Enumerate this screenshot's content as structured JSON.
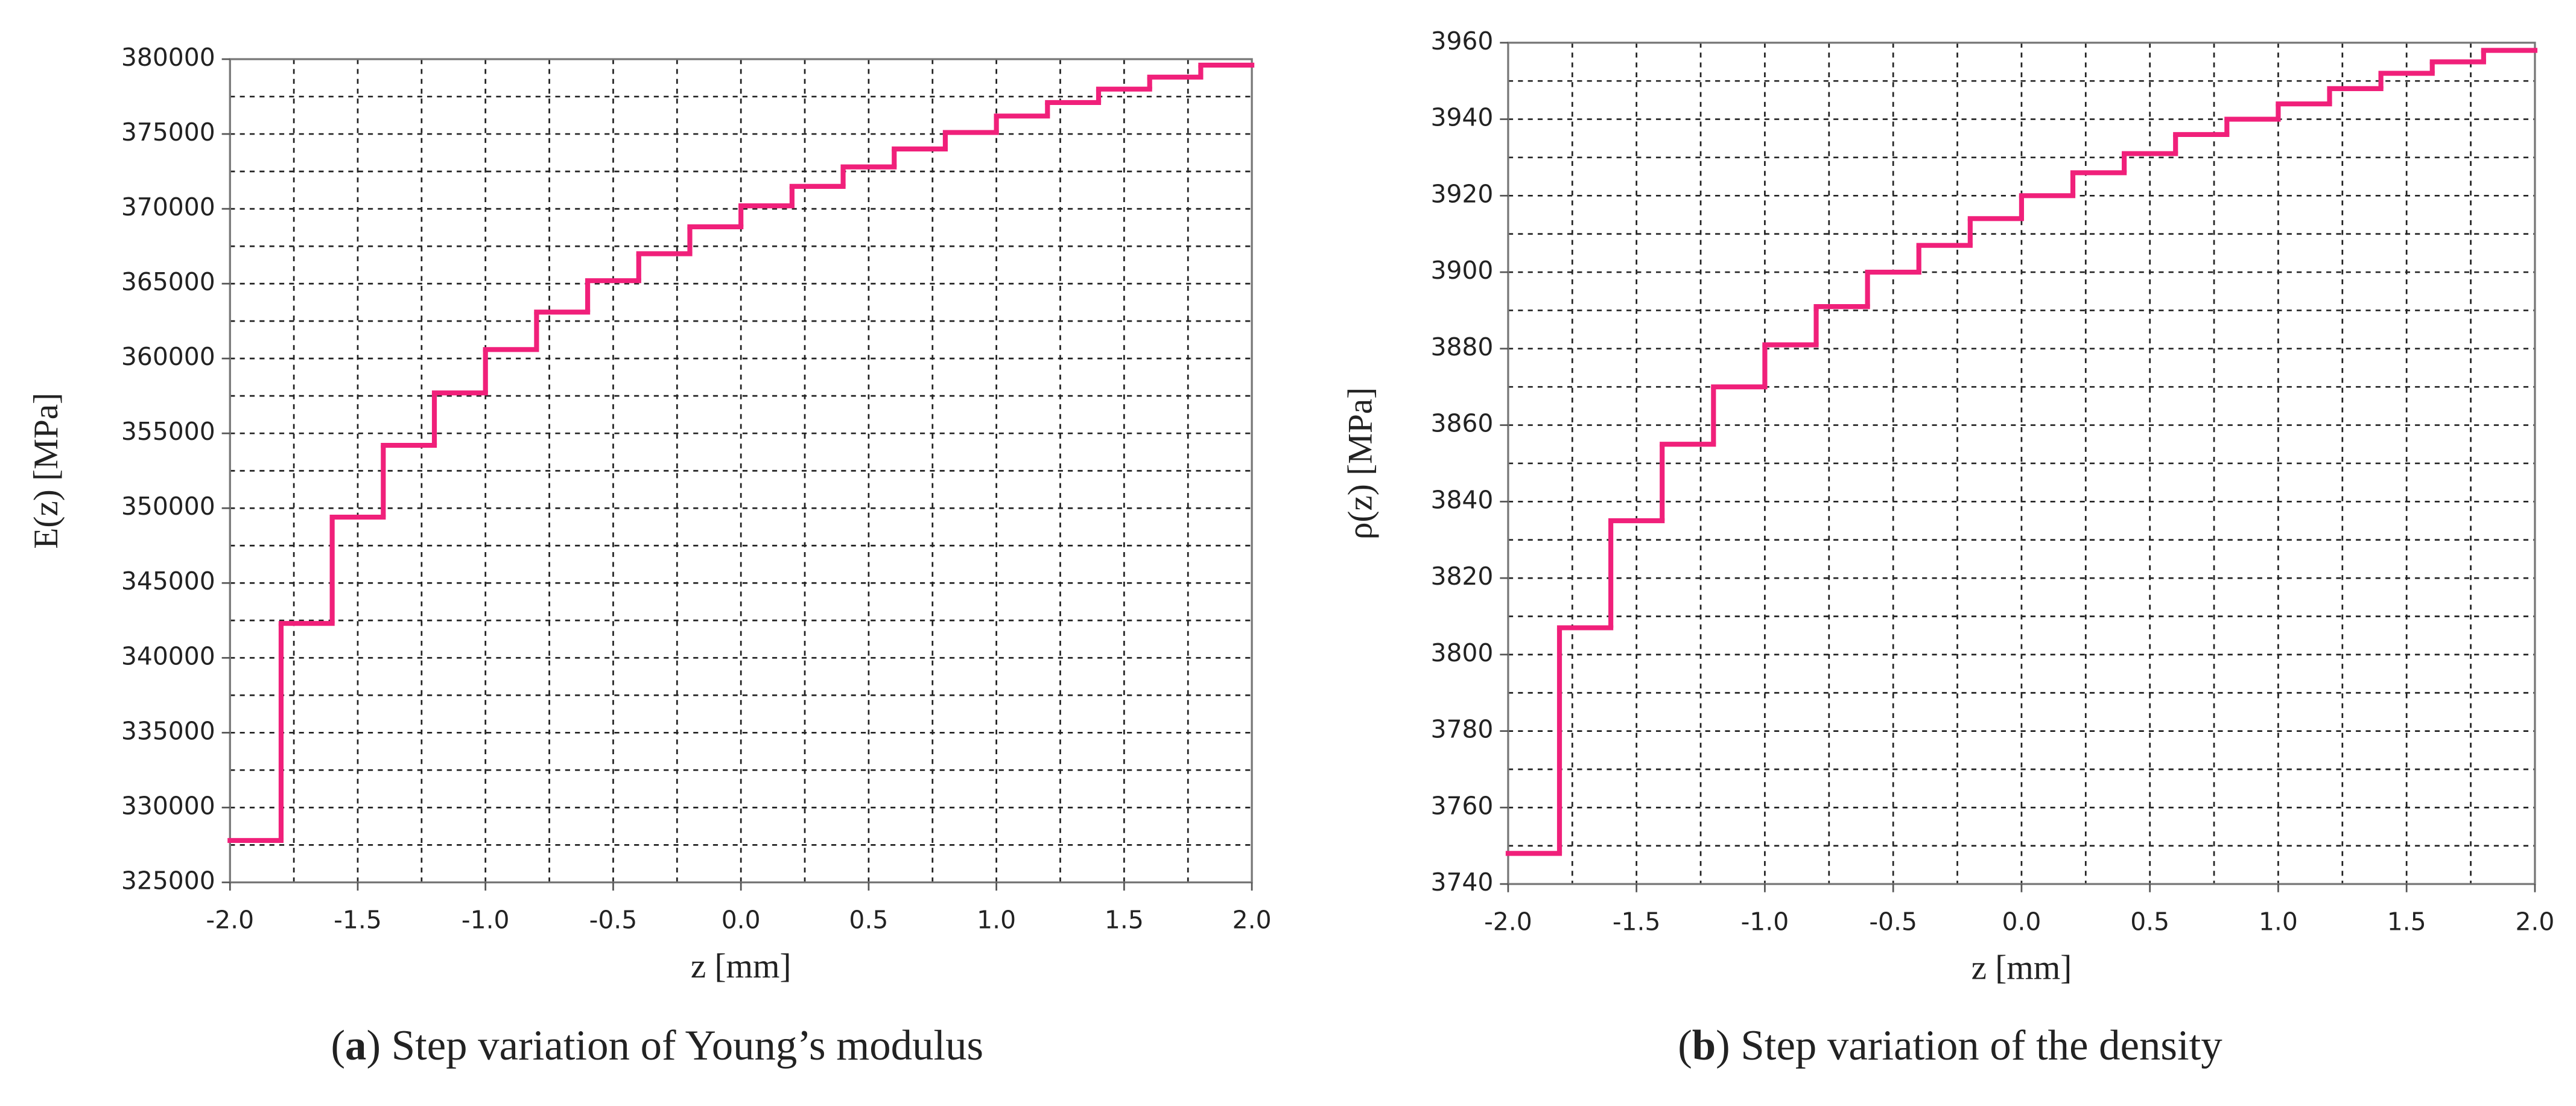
{
  "chart_data": [
    {
      "type": "step",
      "x_label": "z [mm]",
      "y_label": "E(z)  [MPa]",
      "caption": {
        "open": "(",
        "label": "a",
        "text": ") Step variation of Young’s modulus"
      },
      "color": "#f0207a",
      "x": [
        -2.0,
        -1.8,
        -1.6,
        -1.4,
        -1.2,
        -1.0,
        -0.8,
        -0.6,
        -0.4,
        -0.2,
        0.0,
        0.2,
        0.4,
        0.6,
        0.8,
        1.0,
        1.2,
        1.4,
        1.6,
        1.8
      ],
      "values": [
        327800,
        342300,
        349400,
        354200,
        357700,
        360600,
        363100,
        365200,
        367000,
        368800,
        370200,
        371500,
        372800,
        374000,
        375100,
        376200,
        377100,
        378000,
        378800,
        379600
      ],
      "xlim": [
        -2.0,
        2.0
      ],
      "ylim": [
        325000,
        380000
      ],
      "xticks": [
        {
          "value": -2.0,
          "label": "-2.0"
        },
        {
          "value": -1.5,
          "label": "-1.5"
        },
        {
          "value": -1.0,
          "label": "-1.0"
        },
        {
          "value": -0.5,
          "label": "-0.5"
        },
        {
          "value": 0.0,
          "label": "0.0"
        },
        {
          "value": 0.5,
          "label": "0.5"
        },
        {
          "value": 1.0,
          "label": "1.0"
        },
        {
          "value": 1.5,
          "label": "1.5"
        },
        {
          "value": 2.0,
          "label": "2.0"
        }
      ],
      "yticks": [
        325000,
        330000,
        335000,
        340000,
        345000,
        350000,
        355000,
        360000,
        365000,
        370000,
        375000,
        380000
      ],
      "xgrid": [
        -1.75,
        -1.5,
        -1.25,
        -1.0,
        -0.75,
        -0.5,
        -0.25,
        0.0,
        0.25,
        0.5,
        0.75,
        1.0,
        1.25,
        1.5,
        1.75
      ],
      "ygrid": [
        327500,
        330000,
        332500,
        335000,
        337500,
        340000,
        342500,
        345000,
        347500,
        350000,
        352500,
        355000,
        357500,
        360000,
        362500,
        365000,
        367500,
        370000,
        372500,
        375000,
        377500
      ],
      "grid": true
    },
    {
      "type": "step",
      "x_label": "z [mm]",
      "y_label": "ρ(z)  [MPa]",
      "caption": {
        "open": "(",
        "label": "b",
        "text": ") Step variation of the density"
      },
      "color": "#f0207a",
      "x": [
        -2.0,
        -1.8,
        -1.6,
        -1.4,
        -1.2,
        -1.0,
        -0.8,
        -0.6,
        -0.4,
        -0.2,
        0.0,
        0.2,
        0.4,
        0.6,
        0.8,
        1.0,
        1.2,
        1.4,
        1.6,
        1.8
      ],
      "values": [
        3748,
        3807,
        3835,
        3855,
        3870,
        3881,
        3891,
        3900,
        3907,
        3914,
        3920,
        3926,
        3931,
        3936,
        3940,
        3944,
        3948,
        3952,
        3955,
        3958
      ],
      "xlim": [
        -2.0,
        2.0
      ],
      "ylim": [
        3740,
        3960
      ],
      "xticks": [
        {
          "value": -2.0,
          "label": "-2.0"
        },
        {
          "value": -1.5,
          "label": "-1.5"
        },
        {
          "value": -1.0,
          "label": "-1.0"
        },
        {
          "value": -0.5,
          "label": "-0.5"
        },
        {
          "value": 0.0,
          "label": "0.0"
        },
        {
          "value": 0.5,
          "label": "0.5"
        },
        {
          "value": 1.0,
          "label": "1.0"
        },
        {
          "value": 1.5,
          "label": "1.5"
        },
        {
          "value": 2.0,
          "label": "2.0"
        }
      ],
      "yticks": [
        3740,
        3760,
        3780,
        3800,
        3820,
        3840,
        3860,
        3880,
        3900,
        3920,
        3940,
        3960
      ],
      "xgrid": [
        -1.75,
        -1.5,
        -1.25,
        -1.0,
        -0.75,
        -0.5,
        -0.25,
        0.0,
        0.25,
        0.5,
        0.75,
        1.0,
        1.25,
        1.5,
        1.75
      ],
      "ygrid": [
        3750,
        3760,
        3770,
        3780,
        3790,
        3800,
        3810,
        3820,
        3830,
        3840,
        3850,
        3860,
        3870,
        3880,
        3890,
        3900,
        3910,
        3920,
        3930,
        3940,
        3950
      ],
      "grid": true
    }
  ]
}
